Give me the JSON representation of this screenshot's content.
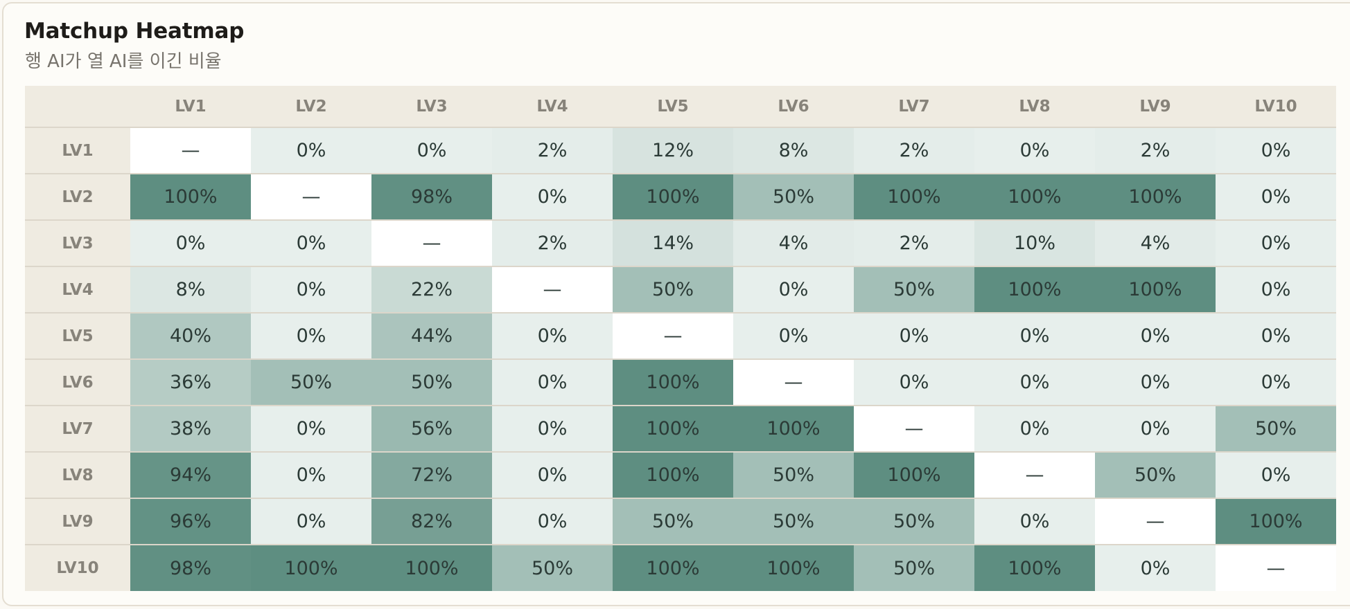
{
  "title": "Matchup Heatmap",
  "subtitle": "행 AI가 열 AI를 이긴 비율",
  "colors": {
    "low": "#e7efec",
    "high": "#5e8e81",
    "diagonal": "#ffffff",
    "header_bg": "#efebe1"
  },
  "chart_data": {
    "type": "heatmap",
    "title": "Matchup Heatmap",
    "subtitle": "행 AI가 열 AI를 이긴 비율",
    "rows": [
      "LV1",
      "LV2",
      "LV3",
      "LV4",
      "LV5",
      "LV6",
      "LV7",
      "LV8",
      "LV9",
      "LV10"
    ],
    "columns": [
      "LV1",
      "LV2",
      "LV3",
      "LV4",
      "LV5",
      "LV6",
      "LV7",
      "LV8",
      "LV9",
      "LV10"
    ],
    "unit": "%",
    "diagonal_label": "—",
    "values": [
      [
        null,
        0,
        0,
        2,
        12,
        8,
        2,
        0,
        2,
        0
      ],
      [
        100,
        null,
        98,
        0,
        100,
        50,
        100,
        100,
        100,
        0
      ],
      [
        0,
        0,
        null,
        2,
        14,
        4,
        2,
        10,
        4,
        0
      ],
      [
        8,
        0,
        22,
        null,
        50,
        0,
        50,
        100,
        100,
        0
      ],
      [
        40,
        0,
        44,
        0,
        null,
        0,
        0,
        0,
        0,
        0
      ],
      [
        36,
        50,
        50,
        0,
        100,
        null,
        0,
        0,
        0,
        0
      ],
      [
        38,
        0,
        56,
        0,
        100,
        100,
        null,
        0,
        0,
        50
      ],
      [
        94,
        0,
        72,
        0,
        100,
        50,
        100,
        null,
        50,
        0
      ],
      [
        96,
        0,
        82,
        0,
        50,
        50,
        50,
        0,
        null,
        100
      ],
      [
        98,
        100,
        100,
        50,
        100,
        100,
        50,
        100,
        0,
        null
      ]
    ]
  }
}
